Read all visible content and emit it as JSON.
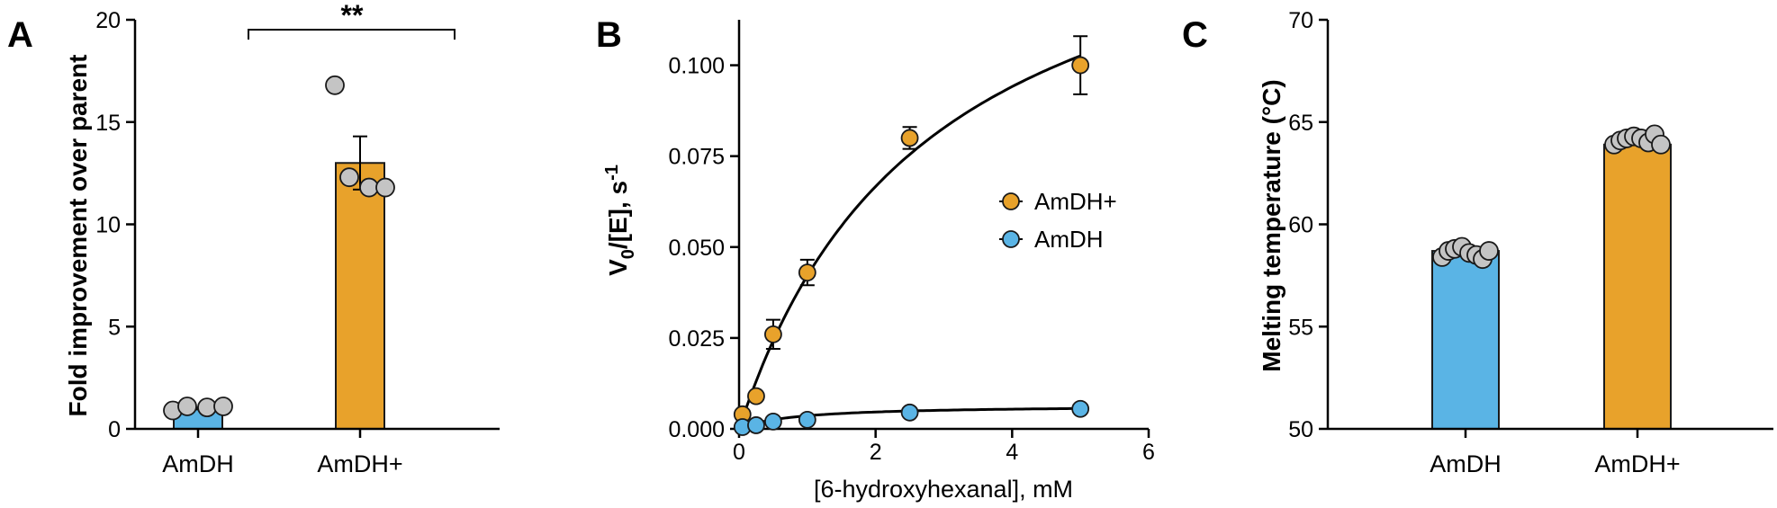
{
  "colors": {
    "amdh": "#5ab4e5",
    "amdh_plus": "#e8a22b",
    "replicate": "#c4c4c4",
    "outline": "#1a1a1a"
  },
  "chart_data": [
    {
      "panel": "A",
      "type": "bar",
      "categories": [
        "AmDH",
        "AmDH+"
      ],
      "values": [
        1.0,
        13.0
      ],
      "errors": [
        0.05,
        1.3
      ],
      "replicates": [
        [
          0.9,
          1.1,
          1.05,
          1.1
        ],
        [
          16.8,
          12.3,
          11.8,
          11.8
        ]
      ],
      "significance": "**",
      "xlabel": "",
      "ylabel": "Fold improvement over parent",
      "ylim": [
        0,
        20
      ],
      "yticks": [
        "0",
        "5",
        "10",
        "15",
        "20"
      ]
    },
    {
      "panel": "B",
      "type": "scatter",
      "xlabel": "[6-hydroxyhexanal], mM",
      "ylabel": {
        "main": "V",
        "sub": "0",
        "rest": "/[E], s",
        "sup": "-1"
      },
      "xlim": [
        0,
        6
      ],
      "ylim": [
        0,
        0.1125
      ],
      "xticks": [
        "0",
        "2",
        "4",
        "6"
      ],
      "yticks": [
        "0.000",
        "0.025",
        "0.050",
        "0.075",
        "0.100"
      ],
      "legend": "right",
      "series": [
        {
          "name": "AmDH+",
          "x": [
            0.05,
            0.25,
            0.5,
            1.0,
            2.5,
            5.0
          ],
          "y": [
            0.004,
            0.009,
            0.026,
            0.043,
            0.08,
            0.1
          ],
          "err": [
            0.0,
            0.0,
            0.004,
            0.0035,
            0.003,
            0.008
          ],
          "fit": {
            "vmax": 0.16,
            "km": 2.8
          }
        },
        {
          "name": "AmDH",
          "x": [
            0.05,
            0.25,
            0.5,
            1.0,
            2.5,
            5.0
          ],
          "y": [
            0.0005,
            0.001,
            0.002,
            0.0025,
            0.0045,
            0.0055
          ],
          "err": [
            0,
            0,
            0,
            0,
            0,
            0
          ],
          "fit": {
            "vmax": 0.0065,
            "km": 0.8
          }
        }
      ]
    },
    {
      "panel": "C",
      "type": "bar",
      "categories": [
        "AmDH",
        "AmDH+"
      ],
      "values": [
        58.7,
        63.9
      ],
      "replicates": [
        [
          58.4,
          58.7,
          58.8,
          58.9,
          58.6,
          58.5,
          58.3,
          58.7
        ],
        [
          63.9,
          64.1,
          64.2,
          64.3,
          64.2,
          64.0,
          64.4,
          63.9
        ]
      ],
      "xlabel": "",
      "ylabel": "Melting temperature (°C)",
      "ylim": [
        50,
        70
      ],
      "yticks": [
        "50",
        "55",
        "60",
        "65",
        "70"
      ]
    }
  ]
}
